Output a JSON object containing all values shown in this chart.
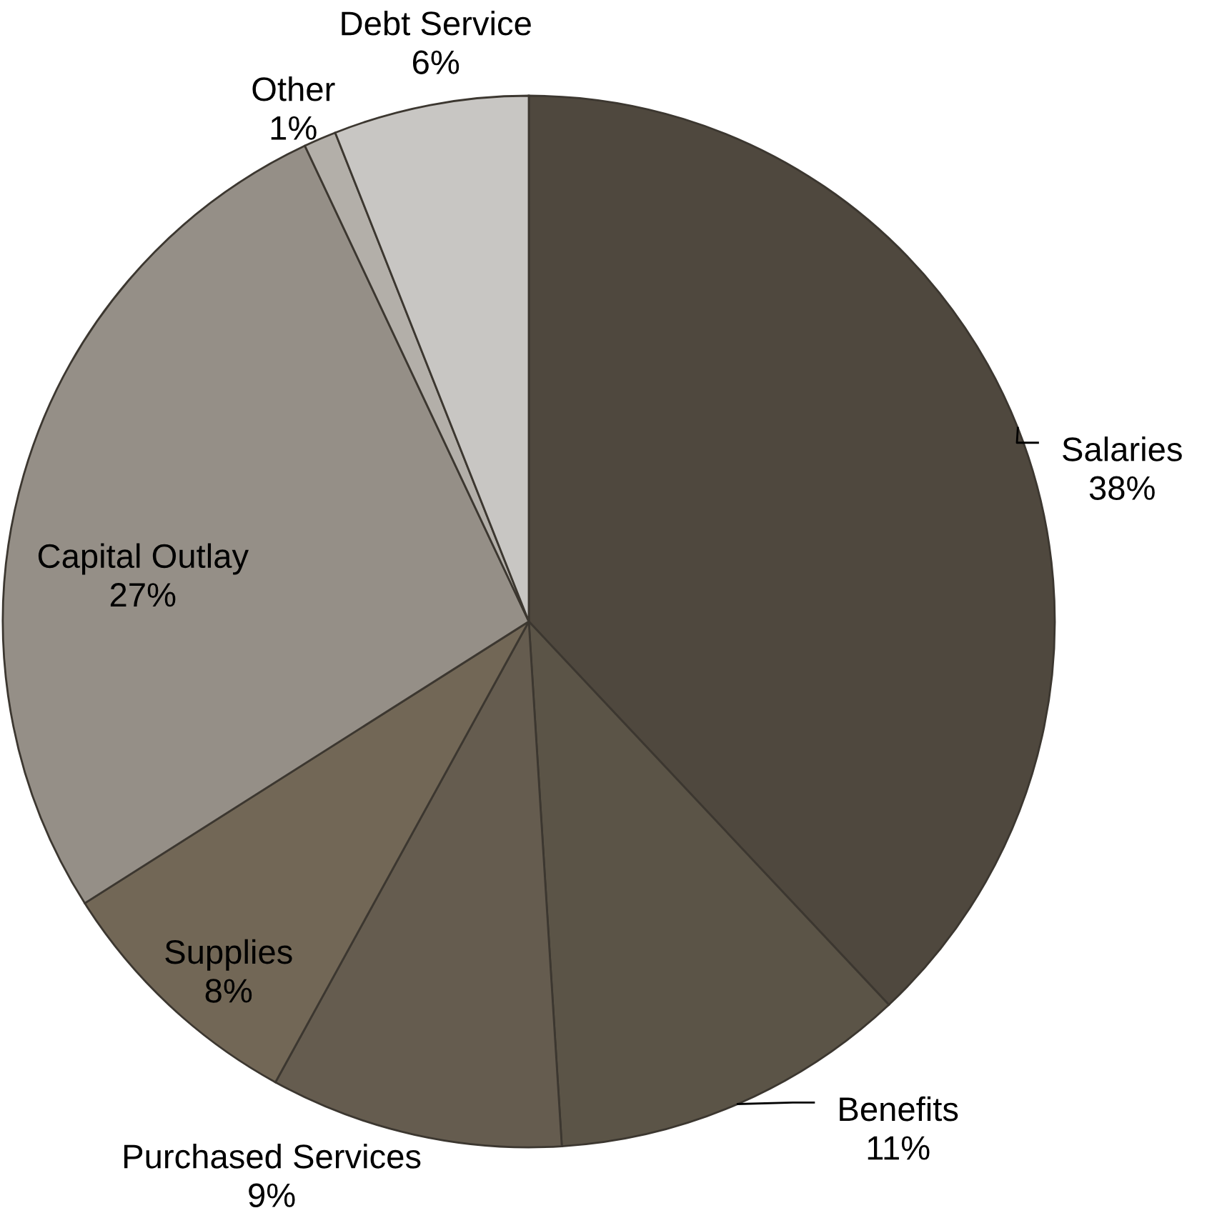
{
  "chart_data": {
    "type": "pie",
    "categories": [
      "Salaries",
      "Benefits",
      "Purchased Services",
      "Supplies",
      "Capital Outlay",
      "Other",
      "Debt Service"
    ],
    "values": [
      38,
      11,
      9,
      8,
      27,
      1,
      6
    ],
    "value_labels": [
      "38%",
      "11%",
      "9%",
      "8%",
      "27%",
      "1%",
      "6%"
    ],
    "colors": [
      "#4f483e",
      "#5b5447",
      "#655c4f",
      "#726756",
      "#958f87",
      "#b3afa9",
      "#c8c6c3"
    ]
  }
}
